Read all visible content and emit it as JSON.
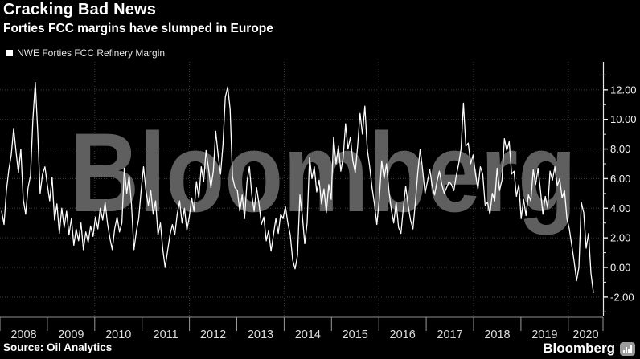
{
  "header": {
    "title": "Cracking Bad News",
    "subtitle": "Forties FCC margins have slumped in Europe"
  },
  "legend": {
    "marker": "square",
    "marker_color": "#ffffff",
    "label": "NWE Forties FCC Refinery Margin"
  },
  "footer": {
    "source": "Source: Oil Analytics",
    "brand": "Bloomberg",
    "brand_icon": "bar-chart-icon"
  },
  "colors": {
    "background": "#000000",
    "line": "#ffffff",
    "grid": "#3f3f3f",
    "watermark": "#5f5f5f",
    "axis_text": "#f2f2f2",
    "year_text": "#dddddd",
    "axis_line": "#e8e8e8",
    "x_axis_line": "#8f8f8f"
  },
  "chart_data": {
    "type": "line",
    "title": "Cracking Bad News",
    "subtitle": "Forties FCC margins have slumped in Europe",
    "watermark": "Bloomberg",
    "legend_position": "top-left",
    "grid": "dotted; horizontal every 2 units, vertical every 2 years",
    "x_axis": {
      "categories": [
        "2008",
        "2009",
        "2010",
        "2011",
        "2012",
        "2013",
        "2014",
        "2015",
        "2016",
        "2017",
        "2018",
        "2019",
        "2020"
      ],
      "note": "weekly series Jan 2008 - early 2020, sampled at 247 points"
    },
    "y_axis": {
      "tick_values": [
        12,
        10,
        8,
        6,
        4,
        2,
        0,
        -2
      ],
      "tick_labels": [
        "12.00",
        "10.00",
        "8.00",
        "6.00",
        "4.00",
        "2.00",
        "0.00",
        "-2.00"
      ],
      "range": [
        -3.3,
        13.9
      ],
      "minor_tick_step": 1
    },
    "series": [
      {
        "name": "NWE Forties FCC Refinery Margin",
        "values": [
          3.8,
          2.9,
          5.2,
          6.6,
          7.6,
          9.4,
          7.8,
          6.4,
          8.0,
          4.6,
          3.6,
          5.4,
          6.2,
          10.0,
          12.5,
          9.2,
          5.0,
          6.3,
          6.8,
          5.6,
          4.5,
          6.1,
          3.2,
          4.3,
          2.3,
          4.0,
          2.7,
          3.8,
          2.2,
          3.3,
          1.5,
          2.6,
          1.8,
          3.0,
          1.2,
          2.4,
          1.7,
          2.8,
          2.1,
          3.4,
          2.6,
          4.0,
          3.2,
          4.4,
          3.0,
          2.0,
          1.2,
          2.6,
          3.4,
          2.4,
          3.0,
          6.7,
          5.0,
          6.2,
          4.2,
          1.2,
          2.4,
          3.3,
          5.2,
          6.8,
          5.2,
          4.2,
          5.2,
          3.6,
          4.5,
          2.2,
          3.0,
          1.2,
          0.0,
          1.1,
          2.2,
          2.9,
          2.2,
          3.6,
          4.5,
          3.0,
          4.0,
          2.5,
          3.4,
          4.7,
          3.8,
          5.8,
          4.7,
          6.8,
          5.8,
          7.9,
          6.7,
          5.4,
          6.5,
          9.2,
          7.6,
          6.3,
          8.3,
          11.5,
          12.2,
          10.7,
          6.1,
          5.4,
          5.2,
          3.8,
          4.9,
          3.3,
          5.8,
          6.8,
          4.9,
          3.8,
          5.4,
          4.3,
          2.9,
          3.4,
          1.8,
          2.5,
          1.1,
          2.2,
          3.3,
          2.3,
          3.6,
          3.3,
          4.1,
          3.0,
          2.2,
          0.5,
          -0.1,
          0.8,
          4.9,
          3.5,
          1.6,
          3.0,
          7.4,
          6.0,
          6.8,
          5.1,
          5.9,
          4.3,
          5.3,
          3.7,
          5.6,
          4.6,
          8.8,
          7.0,
          8.2,
          6.5,
          7.4,
          9.7,
          8.0,
          8.8,
          7.2,
          6.4,
          8.2,
          10.4,
          9.0,
          10.9,
          8.0,
          6.8,
          5.4,
          4.3,
          2.9,
          4.6,
          7.2,
          6.0,
          7.0,
          5.2,
          3.9,
          3.0,
          4.4,
          2.7,
          2.3,
          4.0,
          5.5,
          4.2,
          3.2,
          2.6,
          4.4,
          6.4,
          8.0,
          6.6,
          5.0,
          5.8,
          6.6,
          5.5,
          4.9,
          5.8,
          6.5,
          5.6,
          5.0,
          5.4,
          5.8,
          5.6,
          5.2,
          6.2,
          7.0,
          8.0,
          11.1,
          8.2,
          8.4,
          7.0,
          7.6,
          6.3,
          5.3,
          6.8,
          6.3,
          4.2,
          4.4,
          3.6,
          5.0,
          4.5,
          6.7,
          5.2,
          5.9,
          8.7,
          7.9,
          8.5,
          6.3,
          6.5,
          4.8,
          5.6,
          3.3,
          4.6,
          3.5,
          4.9,
          4.5,
          6.6,
          5.6,
          6.7,
          5.2,
          3.6,
          4.8,
          4.0,
          6.5,
          5.9,
          6.8,
          5.5,
          6.0,
          4.7,
          5.2,
          3.3,
          2.6,
          1.5,
          0.4,
          -0.9,
          0.0,
          4.4,
          3.7,
          1.3,
          2.3,
          -0.4,
          -1.7
        ]
      }
    ]
  }
}
